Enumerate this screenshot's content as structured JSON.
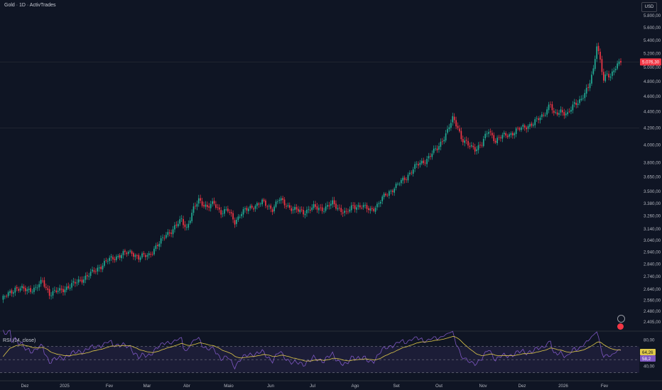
{
  "header": {
    "title": "Gold · 1D · ActivTrades",
    "currency": "USD"
  },
  "rsi": {
    "title": "RSI (14, close)",
    "value_label": "64,26",
    "value2_label": "58,2",
    "ticks": [
      "80,00",
      "40,00"
    ]
  },
  "price_label": "5.076,30",
  "chart_data": {
    "type": "candlestick",
    "x_ticks": [
      "Dez",
      "2025",
      "Fev",
      "Mar",
      "Abr",
      "Maio",
      "Jun",
      "Jul",
      "Ago",
      "Set",
      "Out",
      "Nov",
      "Dez",
      "2026",
      "Fev"
    ],
    "y_ticks": [
      "5.800,00",
      "5.600,00",
      "5.400,00",
      "5.200,00",
      "5.000,00",
      "4.800,00",
      "4.600,00",
      "4.400,00",
      "4.200,00",
      "4.000,00",
      "3.800,00",
      "3.650,00",
      "3.500,00",
      "3.380,00",
      "3.260,00",
      "3.140,00",
      "3.040,00",
      "2.940,00",
      "2.840,00",
      "2.740,00",
      "2.640,00",
      "2.560,00",
      "2.480,00",
      "2.405,00"
    ],
    "close_anchors": [
      [
        0,
        2560
      ],
      [
        8,
        2650
      ],
      [
        15,
        2635
      ],
      [
        20,
        2650
      ],
      [
        24,
        2700
      ],
      [
        28,
        2610
      ],
      [
        34,
        2630
      ],
      [
        42,
        2680
      ],
      [
        52,
        2760
      ],
      [
        62,
        2870
      ],
      [
        70,
        2920
      ],
      [
        76,
        2940
      ],
      [
        80,
        2890
      ],
      [
        86,
        2920
      ],
      [
        92,
        3010
      ],
      [
        96,
        3100
      ],
      [
        100,
        3130
      ],
      [
        105,
        3230
      ],
      [
        108,
        3150
      ],
      [
        112,
        3320
      ],
      [
        115,
        3420
      ],
      [
        120,
        3340
      ],
      [
        124,
        3380
      ],
      [
        128,
        3300
      ],
      [
        132,
        3310
      ],
      [
        136,
        3210
      ],
      [
        140,
        3290
      ],
      [
        146,
        3350
      ],
      [
        152,
        3390
      ],
      [
        158,
        3330
      ],
      [
        162,
        3420
      ],
      [
        166,
        3370
      ],
      [
        170,
        3320
      ],
      [
        176,
        3300
      ],
      [
        182,
        3340
      ],
      [
        188,
        3330
      ],
      [
        193,
        3380
      ],
      [
        197,
        3330
      ],
      [
        201,
        3280
      ],
      [
        205,
        3360
      ],
      [
        210,
        3350
      ],
      [
        215,
        3320
      ],
      [
        219,
        3360
      ],
      [
        224,
        3470
      ],
      [
        230,
        3550
      ],
      [
        236,
        3650
      ],
      [
        242,
        3770
      ],
      [
        248,
        3840
      ],
      [
        254,
        3960
      ],
      [
        260,
        4160
      ],
      [
        263,
        4310
      ],
      [
        266,
        4220
      ],
      [
        268,
        4080
      ],
      [
        272,
        3990
      ],
      [
        276,
        3960
      ],
      [
        280,
        4010
      ],
      [
        284,
        4170
      ],
      [
        288,
        4050
      ],
      [
        292,
        4100
      ],
      [
        298,
        4140
      ],
      [
        304,
        4210
      ],
      [
        310,
        4250
      ],
      [
        316,
        4370
      ],
      [
        320,
        4500
      ],
      [
        322,
        4350
      ],
      [
        326,
        4420
      ],
      [
        330,
        4360
      ],
      [
        334,
        4500
      ],
      [
        338,
        4570
      ],
      [
        342,
        4700
      ],
      [
        345,
        4970
      ],
      [
        347,
        5350
      ],
      [
        349,
        5100
      ],
      [
        351,
        4800
      ],
      [
        353,
        4900
      ],
      [
        355,
        4870
      ],
      [
        357,
        4990
      ],
      [
        361,
        5076
      ]
    ],
    "rsi_ylim": [
      20,
      90
    ],
    "rsi_levels": [
      70,
      50,
      30
    ]
  }
}
